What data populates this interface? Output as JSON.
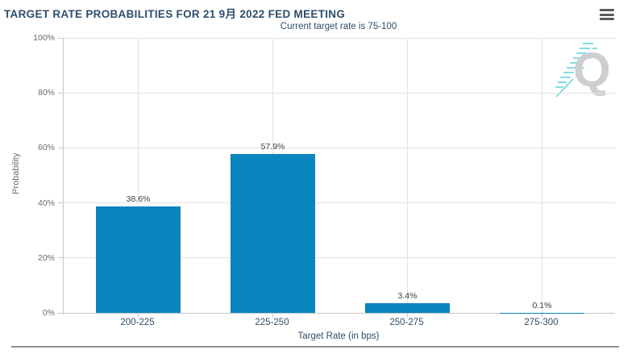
{
  "header": {
    "title": "TARGET RATE PROBABILITIES FOR 21 9月 2022 FED MEETING",
    "subtitle": "Current target rate is 75-100"
  },
  "watermark": {
    "letter": "Q"
  },
  "colors": {
    "bar": "#0a85bd",
    "title_text": "#2d4d6b",
    "axis_text": "#666e75",
    "grid": "#e1e1e1",
    "watermark_teal": "#5ed2da",
    "watermark_gray": "#c9cdd0",
    "menu_icon": "#58595b"
  },
  "chart_data": {
    "type": "bar",
    "title": "TARGET RATE PROBABILITIES FOR 21 9月 2022 FED MEETING",
    "subtitle": "Current target rate is 75-100",
    "categories": [
      "200-225",
      "225-250",
      "250-275",
      "275-300"
    ],
    "values": [
      38.6,
      57.9,
      3.4,
      0.1
    ],
    "value_labels": [
      "38.6%",
      "57.9%",
      "3.4%",
      "0.1%"
    ],
    "xlabel": "Target Rate (in bps)",
    "ylabel": "Probability",
    "ylim": [
      0,
      100
    ],
    "yticks": [
      0,
      20,
      40,
      60,
      80,
      100
    ],
    "ytick_labels": [
      "0%",
      "20%",
      "40%",
      "60%",
      "80%",
      "100%"
    ],
    "grid": true,
    "legend": null,
    "bar_color": "#0a85bd"
  }
}
